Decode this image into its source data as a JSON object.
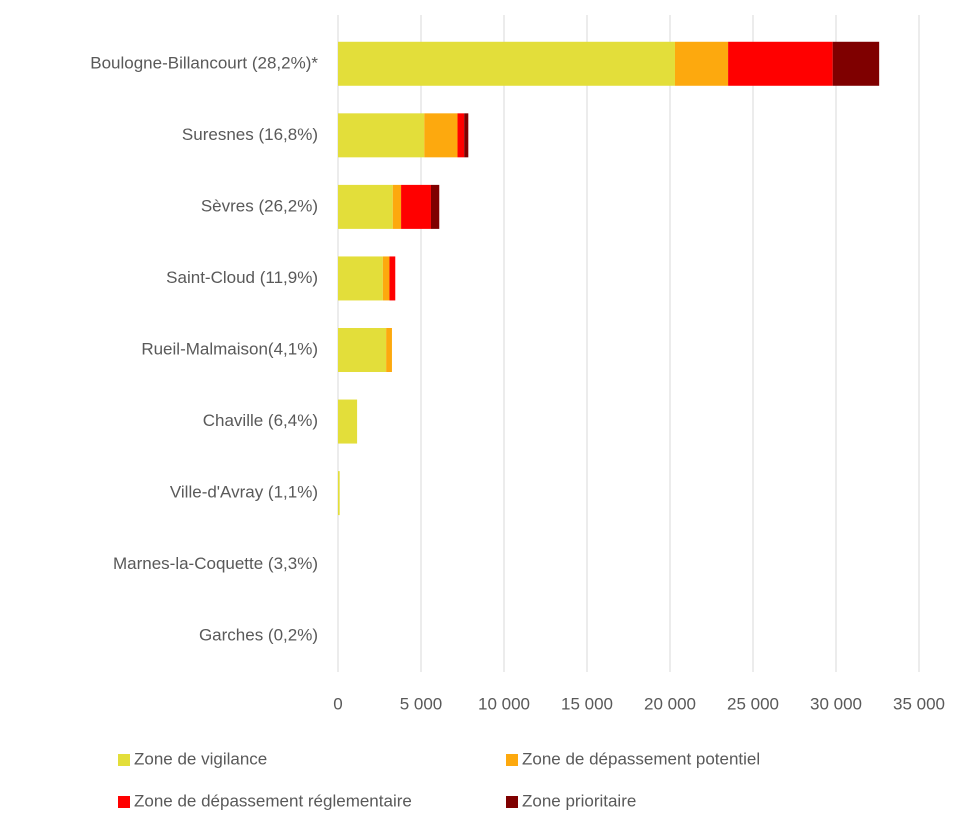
{
  "chart_data": {
    "type": "stacked_barh",
    "categories": [
      "Boulogne-Billancourt (28,2%)*",
      "Suresnes (16,8%)",
      "Sèvres (26,2%)",
      "Saint-Cloud (11,9%)",
      "Rueil-Malmaison(4,1%)",
      "Chaville (6,4%)",
      "Ville-d'Avray (1,1%)",
      "Marnes-la-Coquette (3,3%)",
      "Garches (0,2%)"
    ],
    "series": [
      {
        "name": "Zone de vigilance",
        "color": "#e3de3a",
        "values": [
          20300,
          5200,
          3300,
          2700,
          2900,
          1150,
          100,
          0,
          0
        ]
      },
      {
        "name": "Zone de dépassement potentiel",
        "color": "#fda90e",
        "values": [
          3200,
          2000,
          500,
          400,
          350,
          0,
          0,
          0,
          0
        ]
      },
      {
        "name": "Zone de dépassement réglementaire",
        "color": "#ff0000",
        "values": [
          6300,
          400,
          1800,
          350,
          0,
          0,
          0,
          0,
          0
        ]
      },
      {
        "name": "Zone prioritaire",
        "color": "#7f0000",
        "values": [
          2800,
          250,
          500,
          0,
          0,
          0,
          0,
          0,
          0
        ]
      }
    ],
    "xlim": [
      0,
      35000
    ],
    "xticks": [
      0,
      {
        "value": 5000,
        "label": "5 000"
      },
      {
        "value": 10000,
        "label": "10 000"
      },
      {
        "value": 15000,
        "label": "15 000"
      },
      {
        "value": 20000,
        "label": "20 000"
      },
      {
        "value": 25000,
        "label": "25 000"
      },
      {
        "value": 30000,
        "label": "30 000"
      },
      {
        "value": 35000,
        "label": "35 000"
      }
    ],
    "grid": true
  }
}
